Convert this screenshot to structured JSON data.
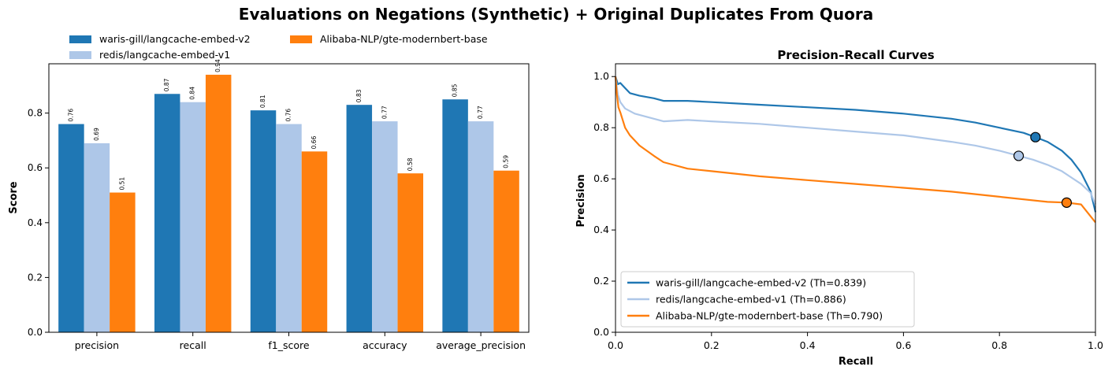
{
  "suptitle": "Evaluations on Negations (Synthetic) + Original Duplicates From Quora",
  "colors": {
    "series": [
      "#1f77b4",
      "#aec7e8",
      "#ff7f0e"
    ]
  },
  "chart_data": [
    {
      "type": "bar",
      "title": "",
      "xlabel": "",
      "ylabel": "Score",
      "ylim": [
        0,
        0.98
      ],
      "yticks": [
        "0.0",
        "0.2",
        "0.4",
        "0.6",
        "0.8"
      ],
      "categories": [
        "precision",
        "recall",
        "f1_score",
        "accuracy",
        "average_precision"
      ],
      "legend_position": "top-left, outside plot",
      "series": [
        {
          "name": "waris-gill/langcache-embed-v2",
          "values": [
            0.76,
            0.87,
            0.81,
            0.83,
            0.85
          ],
          "labels": [
            "0.76",
            "0.87",
            "0.81",
            "0.83",
            "0.85"
          ]
        },
        {
          "name": "redis/langcache-embed-v1",
          "values": [
            0.69,
            0.84,
            0.76,
            0.77,
            0.77
          ],
          "labels": [
            "0.69",
            "0.84",
            "0.76",
            "0.77",
            "0.77"
          ]
        },
        {
          "name": "Alibaba-NLP/gte-modernbert-base",
          "values": [
            0.51,
            0.94,
            0.66,
            0.58,
            0.59
          ],
          "labels": [
            "0.51",
            "0.94",
            "0.66",
            "0.58",
            "0.59"
          ]
        }
      ]
    },
    {
      "type": "line",
      "title": "Precision–Recall Curves",
      "xlabel": "Recall",
      "ylabel": "Precision",
      "xlim": [
        0,
        1
      ],
      "ylim": [
        0,
        1.05
      ],
      "xticks": [
        "0.0",
        "0.2",
        "0.4",
        "0.6",
        "0.8",
        "1.0"
      ],
      "yticks": [
        "0.0",
        "0.2",
        "0.4",
        "0.6",
        "0.8",
        "1.0"
      ],
      "legend_position": "lower-left",
      "series": [
        {
          "name": "waris-gill/langcache-embed-v2 (Th=0.839)",
          "x": [
            0,
            0.005,
            0.01,
            0.02,
            0.03,
            0.05,
            0.08,
            0.1,
            0.15,
            0.2,
            0.3,
            0.4,
            0.5,
            0.6,
            0.7,
            0.75,
            0.8,
            0.85,
            0.875,
            0.9,
            0.93,
            0.95,
            0.97,
            0.99,
            1.0
          ],
          "y": [
            1.0,
            0.97,
            0.975,
            0.955,
            0.935,
            0.925,
            0.915,
            0.905,
            0.905,
            0.9,
            0.89,
            0.88,
            0.87,
            0.855,
            0.835,
            0.82,
            0.8,
            0.78,
            0.763,
            0.745,
            0.71,
            0.675,
            0.625,
            0.55,
            0.47
          ],
          "marker": {
            "x": 0.875,
            "y": 0.763
          }
        },
        {
          "name": "redis/langcache-embed-v1 (Th=0.886)",
          "x": [
            0,
            0.005,
            0.01,
            0.02,
            0.04,
            0.06,
            0.08,
            0.1,
            0.15,
            0.2,
            0.3,
            0.4,
            0.5,
            0.6,
            0.7,
            0.75,
            0.8,
            0.84,
            0.87,
            0.9,
            0.93,
            0.95,
            0.97,
            0.99,
            1.0
          ],
          "y": [
            1.0,
            0.93,
            0.9,
            0.875,
            0.855,
            0.845,
            0.835,
            0.825,
            0.83,
            0.825,
            0.815,
            0.8,
            0.785,
            0.77,
            0.745,
            0.73,
            0.71,
            0.69,
            0.675,
            0.655,
            0.63,
            0.605,
            0.58,
            0.545,
            0.5
          ],
          "marker": {
            "x": 0.84,
            "y": 0.69
          }
        },
        {
          "name": "Alibaba-NLP/gte-modernbert-base (Th=0.790)",
          "x": [
            0,
            0.003,
            0.006,
            0.01,
            0.02,
            0.03,
            0.05,
            0.08,
            0.1,
            0.15,
            0.2,
            0.3,
            0.4,
            0.5,
            0.6,
            0.7,
            0.8,
            0.9,
            0.94,
            0.97,
            1.0
          ],
          "y": [
            1.0,
            0.93,
            0.88,
            0.86,
            0.8,
            0.77,
            0.73,
            0.69,
            0.665,
            0.64,
            0.63,
            0.61,
            0.595,
            0.58,
            0.565,
            0.55,
            0.53,
            0.51,
            0.507,
            0.5,
            0.43
          ],
          "marker": {
            "x": 0.94,
            "y": 0.507
          }
        }
      ]
    }
  ]
}
